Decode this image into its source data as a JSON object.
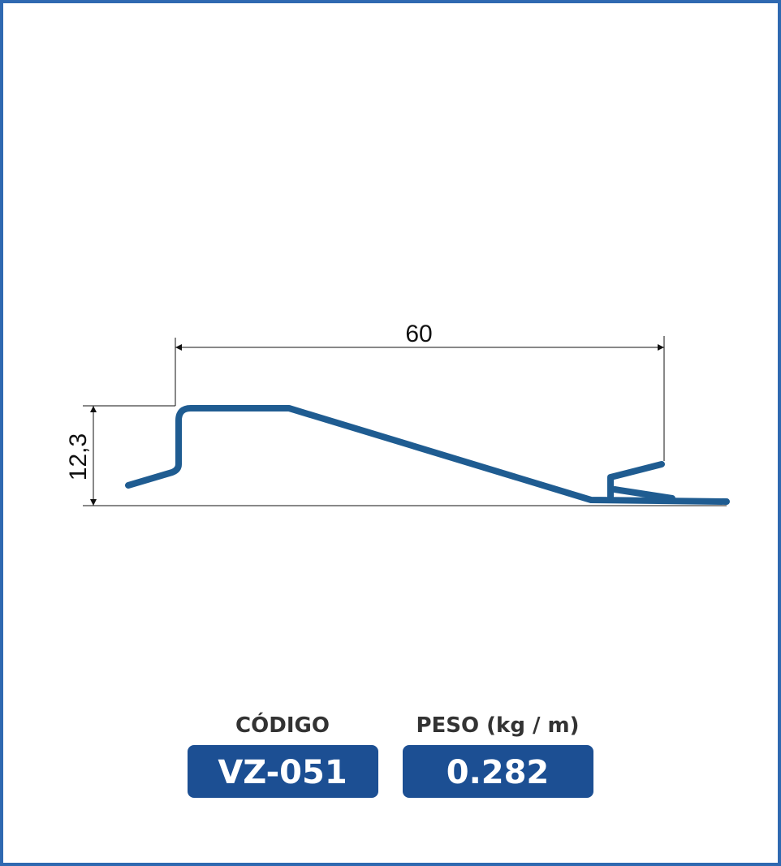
{
  "dimensions": {
    "width": "60",
    "height": "12,3"
  },
  "code": {
    "label": "CÓDIGO",
    "value": "VZ-051"
  },
  "weight": {
    "label": "PESO (kg / m)",
    "value": "0.282"
  }
}
